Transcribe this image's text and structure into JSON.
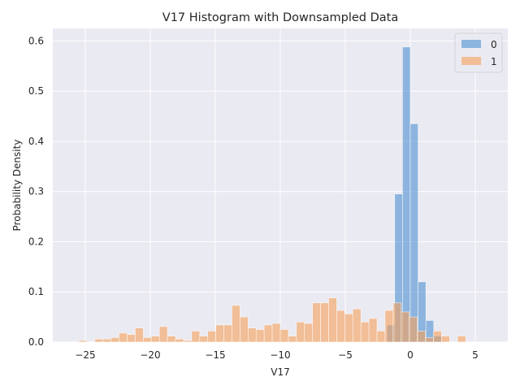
{
  "chart_data": {
    "type": "histogram",
    "title": "V17 Histogram with Downsampled Data",
    "xlabel": "V17",
    "ylabel": "Probability Density",
    "xlim": [
      -27.5,
      7.5
    ],
    "ylim": [
      0,
      0.625
    ],
    "xticks": [
      -25,
      -20,
      -15,
      -10,
      -5,
      0,
      5
    ],
    "xtick_labels": [
      "−25",
      "−20",
      "−15",
      "−10",
      "−5",
      "0",
      "5"
    ],
    "yticks": [
      0.0,
      0.1,
      0.2,
      0.3,
      0.4,
      0.5,
      0.6
    ],
    "ytick_labels": [
      "0.0",
      "0.1",
      "0.2",
      "0.3",
      "0.4",
      "0.5",
      "0.6"
    ],
    "grid": true,
    "legend_position": "top-right",
    "background_color": "#eaeaf2",
    "series": [
      {
        "name": "0",
        "color": "#4c8fd0",
        "opacity": 0.6,
        "bin_width": 0.6,
        "bins": [
          {
            "x0": -1.8,
            "x1": -1.2,
            "value": 0.034
          },
          {
            "x0": -1.2,
            "x1": -0.6,
            "value": 0.295
          },
          {
            "x0": -0.6,
            "x1": 0.0,
            "value": 0.588
          },
          {
            "x0": 0.0,
            "x1": 0.6,
            "value": 0.435
          },
          {
            "x0": 0.6,
            "x1": 1.2,
            "value": 0.12
          },
          {
            "x0": 1.2,
            "x1": 1.8,
            "value": 0.043
          },
          {
            "x0": 1.8,
            "x1": 2.4,
            "value": 0.012
          }
        ]
      },
      {
        "name": "1",
        "color": "#f5a05a",
        "opacity": 0.6,
        "bin_width": 0.62,
        "start": -25.5,
        "values": [
          0.003,
          0.0,
          0.006,
          0.006,
          0.009,
          0.018,
          0.015,
          0.028,
          0.009,
          0.012,
          0.031,
          0.012,
          0.006,
          0.003,
          0.022,
          0.012,
          0.022,
          0.034,
          0.034,
          0.073,
          0.05,
          0.028,
          0.025,
          0.034,
          0.037,
          0.025,
          0.012,
          0.04,
          0.037,
          0.078,
          0.078,
          0.088,
          0.063,
          0.056,
          0.066,
          0.04,
          0.047,
          0.022,
          0.063,
          0.078,
          0.06,
          0.05,
          0.022,
          0.009,
          0.022,
          0.012,
          0.0,
          0.012
        ]
      }
    ]
  }
}
